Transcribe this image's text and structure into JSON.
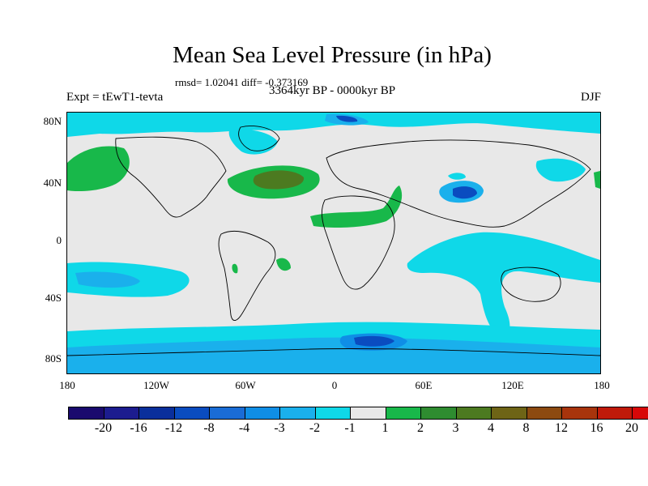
{
  "title": "Mean Sea Level Pressure (in hPa)",
  "stats": "rmsd= 1.02041 diff= -0.373169",
  "experiment": "Expt = tEwT1-tevta",
  "period": "3364kyr BP - 0000kyr BP",
  "season": "DJF",
  "y_ticks": [
    "80N",
    "40N",
    "0",
    "40S",
    "80S"
  ],
  "x_ticks": [
    "180",
    "120W",
    "60W",
    "0",
    "60E",
    "120E",
    "180"
  ],
  "colorbar": {
    "colors": [
      "#1a0a6e",
      "#1c1c8f",
      "#0a2f9c",
      "#0a4cc0",
      "#1a6cd6",
      "#0f8ee6",
      "#1ab0ec",
      "#0fd8e8",
      "#e8e8e8",
      "#18b84a",
      "#2e8c30",
      "#4c7a20",
      "#6e6416",
      "#8c4a10",
      "#a8340c",
      "#c01a0a",
      "#d80808"
    ],
    "labels": [
      "-20",
      "-16",
      "-12",
      "-8",
      "-4",
      "-3",
      "-2",
      "-1",
      "1",
      "2",
      "3",
      "4",
      "8",
      "12",
      "16",
      "20"
    ]
  }
}
